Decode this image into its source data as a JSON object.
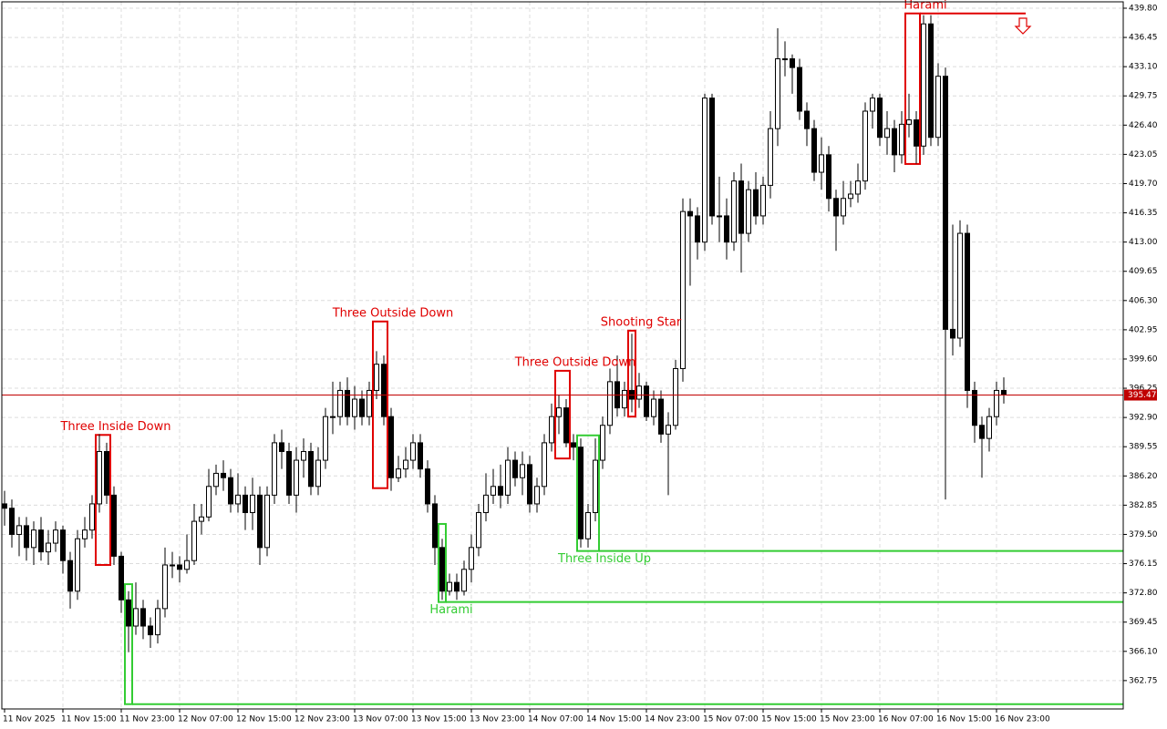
{
  "chart_data": {
    "type": "candlestick",
    "bull_color": "#ffffff",
    "bear_color": "#000000",
    "edge_color": "#000000",
    "grid": true,
    "xlim": [
      -0.375,
      153.375
    ],
    "ylim": [
      359.5,
      440.53
    ],
    "yticks": [
      {
        "value": 439.8,
        "label": "439.80"
      },
      436.45,
      {
        "value": 433.1,
        "label": "433.10"
      },
      429.75,
      {
        "value": 426.4,
        "label": "426.40"
      },
      423.05,
      {
        "value": 419.7,
        "label": "419.70"
      },
      416.35,
      {
        "value": 413,
        "label": "413.00"
      },
      409.65,
      {
        "value": 406.3,
        "label": "406.30"
      },
      402.95,
      {
        "value": 399.6,
        "label": "399.60"
      },
      396.25,
      {
        "value": 392.9,
        "label": "392.90"
      },
      389.55,
      {
        "value": 386.2,
        "label": "386.20"
      },
      382.85,
      {
        "value": 379.5,
        "label": "379.50"
      },
      376.15,
      {
        "value": 372.8,
        "label": "372.80"
      },
      369.45,
      {
        "value": 366.1,
        "label": "366.10"
      },
      362.75
    ],
    "xticks": [
      {
        "value": 0,
        "label": "11 Nov 2025"
      },
      {
        "value": 8,
        "label": "11 Nov 15:00"
      },
      {
        "value": 16,
        "label": "11 Nov 23:00"
      },
      {
        "value": 24,
        "label": "12 Nov 07:00"
      },
      {
        "value": 32,
        "label": "12 Nov 15:00"
      },
      {
        "value": 40,
        "label": "12 Nov 23:00"
      },
      {
        "value": 48,
        "label": "13 Nov 07:00"
      },
      {
        "value": 56,
        "label": "13 Nov 15:00"
      },
      {
        "value": 64,
        "label": "13 Nov 23:00"
      },
      {
        "value": 72,
        "label": "14 Nov 07:00"
      },
      {
        "value": 80,
        "label": "14 Nov 15:00"
      },
      {
        "value": 88,
        "label": "14 Nov 23:00"
      },
      {
        "value": 96,
        "label": "15 Nov 07:00"
      },
      {
        "value": 104,
        "label": "15 Nov 15:00"
      },
      {
        "value": 112,
        "label": "15 Nov 23:00"
      },
      {
        "value": 120,
        "label": "16 Nov 07:00"
      },
      {
        "value": 128,
        "label": "16 Nov 15:00"
      },
      {
        "value": 136,
        "label": "16 Nov 23:00"
      }
    ],
    "x": [
      0,
      1,
      2,
      3,
      4,
      5,
      6,
      7,
      8,
      9,
      10,
      11,
      12,
      13,
      14,
      15,
      16,
      17,
      18,
      19,
      20,
      21,
      22,
      23,
      24,
      25,
      26,
      27,
      28,
      29,
      30,
      31,
      32,
      33,
      34,
      35,
      36,
      37,
      38,
      39,
      40,
      41,
      42,
      43,
      44,
      45,
      46,
      47,
      48,
      49,
      50,
      51,
      52,
      53,
      54,
      55,
      56,
      57,
      58,
      59,
      60,
      61,
      62,
      63,
      64,
      65,
      66,
      67,
      68,
      69,
      70,
      71,
      72,
      73,
      74,
      75,
      76,
      77,
      78,
      79,
      80,
      81,
      82,
      83,
      84,
      85,
      86,
      87,
      88,
      89,
      90,
      91,
      92,
      93,
      94,
      95,
      96,
      97,
      98,
      99,
      100,
      101,
      102,
      103,
      104,
      105,
      106,
      107,
      108,
      109,
      110,
      111,
      112,
      113,
      114,
      115,
      116,
      117,
      118,
      119,
      120,
      121,
      122,
      123,
      124,
      125,
      126,
      127,
      128,
      129,
      130,
      131,
      132,
      133,
      134,
      135,
      136,
      137
    ],
    "open": [
      383,
      382.5,
      379.5,
      380.5,
      378,
      380,
      377.5,
      378.5,
      380,
      376.5,
      373,
      379,
      380,
      383,
      389,
      384,
      377,
      372,
      369,
      371,
      369,
      368,
      371,
      376,
      376,
      375.5,
      376.5,
      381,
      381.5,
      385,
      386.5,
      386,
      383,
      384,
      382,
      384,
      378,
      384,
      390,
      389,
      384,
      388,
      389,
      385,
      388,
      393,
      393,
      396,
      393,
      395,
      393,
      396,
      399,
      393,
      386,
      387,
      388,
      390,
      387,
      383,
      378,
      373,
      374,
      373,
      375.5,
      378,
      382,
      384,
      385,
      384,
      388,
      386,
      387.5,
      383,
      385,
      390,
      393,
      394,
      390,
      389.5,
      379,
      382,
      388,
      392,
      397,
      394,
      396,
      395,
      396.5,
      393,
      395,
      391,
      392,
      398.5,
      416.5,
      416,
      413,
      429.5,
      416,
      416,
      413,
      420,
      414,
      419,
      416,
      419.5,
      426,
      434,
      434,
      433,
      428,
      426,
      421,
      423,
      418,
      416,
      418,
      418.5,
      420,
      428,
      429.5,
      425,
      426,
      423,
      426.5,
      427,
      424,
      438,
      425,
      432,
      403,
      402,
      414,
      396,
      392,
      390.5,
      393,
      396
    ],
    "high": [
      384.5,
      383.5,
      381.5,
      381.5,
      381,
      381.5,
      380,
      381,
      380.5,
      377.5,
      380,
      381.5,
      384,
      391,
      390,
      385,
      377.5,
      373,
      374,
      372,
      370,
      372,
      378,
      377.5,
      377,
      379.5,
      383,
      383,
      387,
      387.5,
      388,
      387,
      386.5,
      385,
      386,
      385,
      385,
      391,
      391.5,
      390,
      389.5,
      390.5,
      390,
      389.5,
      394,
      397,
      397,
      397.5,
      396.5,
      396,
      397,
      400.5,
      400,
      394,
      388.5,
      389.5,
      391,
      391,
      388,
      384,
      379,
      375,
      375,
      376.5,
      379.5,
      383,
      386.5,
      387,
      387.5,
      389.5,
      389,
      389,
      388.5,
      386,
      391,
      394.5,
      395.5,
      395,
      391,
      390.5,
      383,
      390.5,
      393,
      398.5,
      400,
      397,
      402.5,
      398,
      397,
      396,
      396,
      393.5,
      399.5,
      418,
      418,
      417,
      430,
      430,
      420.5,
      418,
      421,
      422,
      420,
      421,
      420.5,
      428,
      437.5,
      436,
      434.5,
      434,
      429,
      427,
      425,
      424,
      419,
      420,
      420,
      422,
      429,
      430,
      430,
      428,
      427,
      428,
      430,
      428,
      439,
      439,
      433.5,
      433,
      415,
      415.5,
      415,
      397,
      393,
      394,
      397,
      397.5
    ],
    "low": [
      380.5,
      378,
      377,
      376.5,
      376,
      376.5,
      376,
      377.5,
      375,
      371,
      372,
      378,
      379,
      382,
      383,
      376,
      370.5,
      366,
      368,
      367.5,
      366.5,
      367,
      370,
      374.5,
      374,
      375,
      376,
      379.5,
      381,
      384,
      384.5,
      382,
      382,
      380,
      380,
      376,
      377,
      383,
      387,
      383,
      382,
      386,
      384,
      384,
      387,
      391,
      392,
      392,
      391.5,
      392,
      392,
      395,
      392,
      384.5,
      385.5,
      386,
      387,
      386,
      382,
      376,
      372,
      372.5,
      372,
      372.5,
      374,
      377,
      381,
      383,
      382.5,
      383,
      385,
      384,
      382,
      382,
      384,
      389,
      391,
      389.5,
      388,
      378,
      378,
      381,
      387,
      391,
      393,
      393,
      393.5,
      394,
      392.5,
      392,
      390,
      384,
      391.5,
      397,
      408,
      411,
      412,
      415,
      413,
      411,
      412,
      409.5,
      413,
      415,
      415,
      418,
      424,
      432,
      430,
      427,
      424,
      420,
      419,
      416.5,
      412,
      415,
      417,
      417.5,
      419,
      426,
      424,
      423,
      421,
      422,
      425,
      422,
      423,
      424,
      424,
      383.5,
      400,
      401,
      394,
      390,
      386,
      389,
      392,
      394.5
    ],
    "close": [
      382.5,
      379.5,
      380.5,
      378,
      380,
      377.5,
      378.5,
      380,
      376.5,
      373,
      379,
      380,
      383,
      389,
      384,
      377,
      372,
      369,
      371,
      369,
      368,
      371,
      376,
      376,
      375.5,
      376.5,
      381,
      381.5,
      385,
      386.5,
      386,
      383,
      384,
      382,
      384,
      378,
      384,
      390,
      389,
      384,
      388,
      389,
      385,
      388,
      393,
      393,
      396,
      393,
      395,
      393,
      396,
      399,
      393,
      386,
      387,
      388,
      390,
      387,
      383,
      378,
      373,
      374,
      373,
      375.5,
      378,
      382,
      384,
      385,
      384,
      388,
      386,
      387.5,
      383,
      385,
      390,
      393,
      394,
      390,
      389.5,
      379,
      382,
      388,
      392,
      397,
      394,
      396,
      395,
      396.5,
      393,
      395,
      391,
      392,
      398.5,
      416.5,
      416,
      413,
      429.5,
      416,
      416,
      413,
      420,
      414,
      419,
      416,
      419.5,
      426,
      434,
      434,
      433,
      428,
      426,
      421,
      423,
      418,
      416,
      418,
      418.5,
      420,
      428,
      429.5,
      425,
      426,
      423,
      426.5,
      427,
      424,
      438,
      425,
      432,
      403,
      402,
      414,
      396,
      392,
      390.5,
      393,
      396,
      395.5
    ],
    "last_price": 395.47,
    "last_price_color": "#c00000",
    "annotations": [
      {
        "label": "Three Inside Down",
        "color": "#e00000",
        "x": [
          13,
          14
        ],
        "y": [
          376.0,
          390.9
        ],
        "label_pos": "above"
      },
      {
        "label": "Three Outside Down",
        "color": "#e00000",
        "x": [
          51,
          52
        ],
        "y": [
          384.8,
          403.9
        ],
        "label_pos": "above"
      },
      {
        "label": "Three Outside Down",
        "color": "#e00000",
        "x": [
          76,
          77
        ],
        "y": [
          388.2,
          398.25
        ],
        "label_pos": "above"
      },
      {
        "label": "Shooting Star",
        "color": "#e00000",
        "x": [
          86,
          86
        ],
        "y": [
          393.0,
          402.85
        ],
        "label_pos": "above"
      },
      {
        "label": "Harami",
        "color": "#e00000",
        "x": [
          124,
          125
        ],
        "y": [
          421.95,
          439.2
        ],
        "label_pos": "above",
        "level": 439.2,
        "x_end": 140
      },
      {
        "label": "Harami",
        "color": "#33cc33",
        "x": [
          60,
          60
        ],
        "y": [
          371.75,
          380.7
        ],
        "label_pos": "below",
        "level": 371.75
      },
      {
        "label": "Three Inside Up",
        "color": "#33cc33",
        "x": [
          79,
          81
        ],
        "y": [
          377.6,
          390.85
        ],
        "label_pos": "below",
        "level": 377.6
      },
      {
        "color": "#33cc33",
        "x": [
          17,
          17
        ],
        "y": [
          360.05,
          373.8
        ],
        "level": 360.05
      }
    ]
  }
}
